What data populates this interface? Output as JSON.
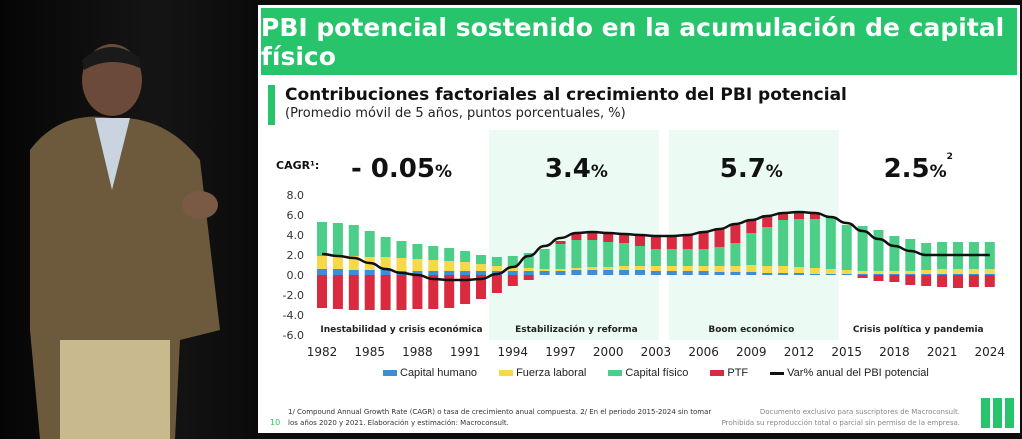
{
  "slide": {
    "title": "PBI potencial sostenido en la acumulación de capital físico",
    "heading": "Contribuciones factoriales al crecimiento del PBI potencial",
    "subheading": "(Promedio móvil de 5 años, puntos porcentuales, %)",
    "footnote_1": "1/ Compound Annual Growth Rate (CAGR) o tasa de crecimiento anual compuesta. 2/ En el periodo 2015-2024 sin tomar",
    "footnote_2": "los años 2020 y 2021. Elaboración y estimación: Macroconsult.",
    "page_number": "10",
    "rights_1": "Documento exclusivo para suscriptores de Macroconsult.",
    "rights_2": "Prohibida su reproducción total o parcial sin permiso de la empresa."
  },
  "chart_data": {
    "type": "bar",
    "stacked": true,
    "cagr_label": "CAGR¹:",
    "periods": [
      {
        "label": "Inestabilidad y crisis económica",
        "cagr": "- 0.05",
        "from": 1982,
        "to": 1992,
        "shaded": false
      },
      {
        "label": "Estabilización y reforma",
        "cagr": "3.4",
        "from": 1993,
        "to": 2003,
        "shaded": true
      },
      {
        "label": "Boom económico",
        "cagr": "5.7",
        "from": 2004,
        "to": 2014,
        "shaded": true
      },
      {
        "label": "Crisis política y pandemia",
        "cagr": "2.5",
        "cagr_note": "2",
        "from": 2015,
        "to": 2024,
        "shaded": false
      }
    ],
    "percent_sign": "%",
    "ylim": [
      -6,
      8
    ],
    "yticks": [
      "-6.0",
      "-4.0",
      "-2.0",
      "0.0",
      "2.0",
      "4.0",
      "6.0",
      "8.0"
    ],
    "xticks": [
      "1982",
      "1985",
      "1988",
      "1991",
      "1994",
      "1997",
      "2000",
      "2003",
      "2006",
      "2009",
      "2012",
      "2015",
      "2018",
      "2021",
      "2024"
    ],
    "x": [
      1982,
      1983,
      1984,
      1985,
      1986,
      1987,
      1988,
      1989,
      1990,
      1991,
      1992,
      1993,
      1994,
      1995,
      1996,
      1997,
      1998,
      1999,
      2000,
      2001,
      2002,
      2003,
      2004,
      2005,
      2006,
      2007,
      2008,
      2009,
      2010,
      2011,
      2012,
      2013,
      2014,
      2015,
      2016,
      2017,
      2018,
      2019,
      2020,
      2021,
      2022,
      2023,
      2024
    ],
    "series": [
      {
        "name": "Capital humano",
        "color": "#3b8fd4",
        "values": [
          0.6,
          0.6,
          0.5,
          0.5,
          0.5,
          0.4,
          0.4,
          0.4,
          0.4,
          0.4,
          0.4,
          0.4,
          0.4,
          0.4,
          0.4,
          0.4,
          0.5,
          0.5,
          0.5,
          0.5,
          0.5,
          0.4,
          0.4,
          0.4,
          0.4,
          0.3,
          0.3,
          0.3,
          0.2,
          0.2,
          0.2,
          0.1,
          0.1,
          0.1,
          0.1,
          0.1,
          0.1,
          0.1,
          0.1,
          0.1,
          0.1,
          0.1,
          0.1
        ]
      },
      {
        "name": "Fuerza laboral",
        "color": "#f7d84a",
        "values": [
          1.3,
          1.3,
          1.4,
          1.3,
          1.3,
          1.3,
          1.2,
          1.1,
          1.0,
          0.9,
          0.7,
          0.5,
          0.3,
          0.3,
          0.2,
          0.2,
          0.2,
          0.3,
          0.3,
          0.4,
          0.4,
          0.5,
          0.5,
          0.5,
          0.5,
          0.6,
          0.6,
          0.7,
          0.7,
          0.7,
          0.6,
          0.6,
          0.5,
          0.4,
          0.3,
          0.3,
          0.3,
          0.3,
          0.4,
          0.5,
          0.5,
          0.5,
          0.5
        ]
      },
      {
        "name": "Capital físico",
        "color": "#4ccd88",
        "values": [
          3.4,
          3.3,
          3.1,
          2.6,
          2.0,
          1.7,
          1.5,
          1.4,
          1.3,
          1.1,
          0.9,
          0.9,
          1.2,
          1.5,
          2.0,
          2.5,
          2.8,
          2.7,
          2.5,
          2.3,
          2.0,
          1.7,
          1.7,
          1.7,
          1.7,
          1.9,
          2.3,
          3.2,
          3.9,
          4.6,
          4.8,
          4.9,
          5.1,
          4.5,
          4.5,
          4.1,
          3.5,
          3.2,
          2.7,
          2.7,
          2.7,
          2.7,
          2.7
        ]
      },
      {
        "name": "PTF",
        "color": "#d92a3f",
        "values": [
          -3.3,
          -3.4,
          -3.5,
          -3.5,
          -3.5,
          -3.5,
          -3.4,
          -3.4,
          -3.3,
          -2.9,
          -2.4,
          -1.8,
          -1.1,
          -0.5,
          0.0,
          0.3,
          0.6,
          0.8,
          0.9,
          0.9,
          1.1,
          1.3,
          1.3,
          1.5,
          1.7,
          1.8,
          1.8,
          1.3,
          1.2,
          0.7,
          0.7,
          0.6,
          0.1,
          0.0,
          -0.3,
          -0.6,
          -0.7,
          -1.0,
          -1.1,
          -1.2,
          -1.3,
          -1.2,
          -1.2
        ]
      }
    ],
    "line": {
      "name": "Var% anual del PBI potencial",
      "color": "#111111",
      "values": [
        2.1,
        1.9,
        1.7,
        1.2,
        0.6,
        0.2,
        0.0,
        -0.4,
        -0.5,
        -0.5,
        -0.4,
        0.1,
        0.8,
        1.9,
        2.9,
        3.7,
        4.2,
        4.3,
        4.2,
        4.1,
        4.0,
        3.9,
        3.9,
        4.0,
        4.3,
        4.6,
        5.1,
        5.5,
        5.9,
        6.2,
        6.3,
        6.2,
        5.8,
        5.2,
        4.4,
        3.6,
        2.9,
        2.4,
        2.0,
        2.0,
        2.0,
        2.0,
        2.0
      ]
    },
    "legend_position": "bottom",
    "grid": false
  }
}
